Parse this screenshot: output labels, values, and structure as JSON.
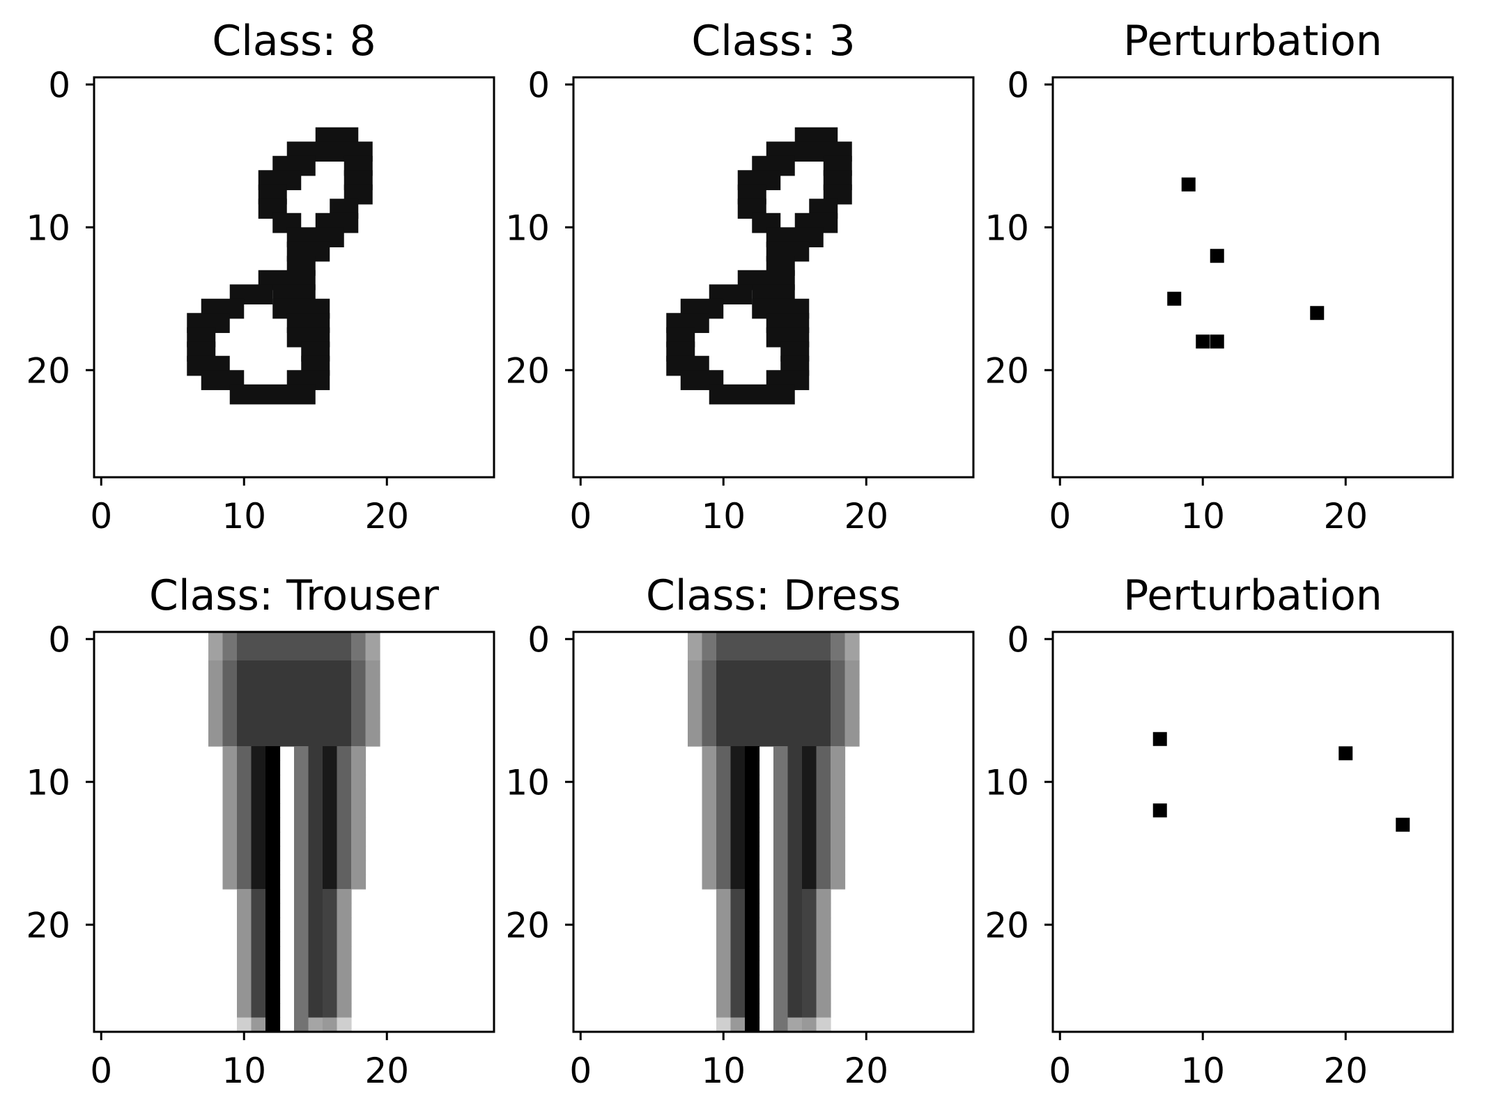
{
  "chart_data": [
    {
      "type": "heatmap",
      "title": "Class: 8",
      "xlim": [
        0,
        27
      ],
      "ylim": [
        27,
        0
      ],
      "xticks": [
        "0",
        "10",
        "20"
      ],
      "yticks": [
        "0",
        "10",
        "20"
      ],
      "colormap": "gray_r",
      "segments": [
        [
          4,
          16,
          18
        ],
        [
          5,
          14,
          19
        ],
        [
          6,
          13,
          15
        ],
        [
          6,
          18,
          19
        ],
        [
          7,
          12,
          14
        ],
        [
          7,
          18,
          19
        ],
        [
          8,
          12,
          13
        ],
        [
          8,
          18,
          19
        ],
        [
          9,
          12,
          13
        ],
        [
          9,
          17,
          18
        ],
        [
          10,
          13,
          14
        ],
        [
          10,
          16,
          18
        ],
        [
          11,
          14,
          17
        ],
        [
          12,
          14,
          16
        ],
        [
          13,
          14,
          15
        ],
        [
          14,
          12,
          15
        ],
        [
          15,
          10,
          12
        ],
        [
          15,
          13,
          15
        ],
        [
          16,
          8,
          10
        ],
        [
          16,
          13,
          16
        ],
        [
          17,
          7,
          9
        ],
        [
          17,
          14,
          16
        ],
        [
          18,
          7,
          8
        ],
        [
          18,
          14,
          16
        ],
        [
          19,
          7,
          8
        ],
        [
          19,
          15,
          16
        ],
        [
          20,
          7,
          9
        ],
        [
          20,
          15,
          16
        ],
        [
          21,
          8,
          10
        ],
        [
          21,
          14,
          16
        ],
        [
          22,
          10,
          15
        ]
      ]
    },
    {
      "type": "heatmap",
      "title": "Class: 3",
      "xlim": [
        0,
        27
      ],
      "ylim": [
        27,
        0
      ],
      "xticks": [
        "0",
        "10",
        "20"
      ],
      "yticks": [
        "0",
        "10",
        "20"
      ],
      "colormap": "gray_r",
      "segments": [
        [
          4,
          16,
          18
        ],
        [
          5,
          14,
          19
        ],
        [
          6,
          13,
          15
        ],
        [
          6,
          18,
          19
        ],
        [
          7,
          12,
          14
        ],
        [
          7,
          18,
          19
        ],
        [
          8,
          12,
          13
        ],
        [
          8,
          18,
          19
        ],
        [
          9,
          12,
          13
        ],
        [
          9,
          17,
          18
        ],
        [
          10,
          13,
          14
        ],
        [
          10,
          16,
          18
        ],
        [
          11,
          14,
          17
        ],
        [
          12,
          14,
          16
        ],
        [
          13,
          14,
          15
        ],
        [
          14,
          12,
          15
        ],
        [
          15,
          10,
          12
        ],
        [
          15,
          13,
          15
        ],
        [
          16,
          8,
          10
        ],
        [
          16,
          13,
          16
        ],
        [
          17,
          7,
          9
        ],
        [
          17,
          14,
          16
        ],
        [
          18,
          7,
          8
        ],
        [
          18,
          14,
          16
        ],
        [
          19,
          7,
          8
        ],
        [
          19,
          15,
          16
        ],
        [
          20,
          7,
          9
        ],
        [
          20,
          15,
          16
        ],
        [
          21,
          8,
          10
        ],
        [
          21,
          14,
          16
        ],
        [
          22,
          10,
          15
        ]
      ]
    },
    {
      "type": "heatmap",
      "title": "Perturbation",
      "xlim": [
        0,
        27
      ],
      "ylim": [
        27,
        0
      ],
      "xticks": [
        "0",
        "10",
        "20"
      ],
      "yticks": [
        "0",
        "10",
        "20"
      ],
      "colormap": "gray_r",
      "points": [
        [
          9,
          7
        ],
        [
          11,
          12
        ],
        [
          8,
          15
        ],
        [
          18,
          16
        ],
        [
          10,
          18
        ],
        [
          11,
          18
        ]
      ]
    },
    {
      "type": "heatmap",
      "title": "Class: Trouser",
      "xlim": [
        0,
        27
      ],
      "ylim": [
        27,
        0
      ],
      "xticks": [
        "0",
        "10",
        "20"
      ],
      "yticks": [
        "0",
        "10",
        "20"
      ],
      "colormap": "gray_r"
    },
    {
      "type": "heatmap",
      "title": "Class: Dress",
      "xlim": [
        0,
        27
      ],
      "ylim": [
        27,
        0
      ],
      "xticks": [
        "0",
        "10",
        "20"
      ],
      "yticks": [
        "0",
        "10",
        "20"
      ],
      "colormap": "gray_r"
    },
    {
      "type": "heatmap",
      "title": "Perturbation",
      "xlim": [
        0,
        27
      ],
      "ylim": [
        27,
        0
      ],
      "xticks": [
        "0",
        "10",
        "20"
      ],
      "yticks": [
        "0",
        "10",
        "20"
      ],
      "colormap": "gray_r",
      "points": [
        [
          7,
          7
        ],
        [
          20,
          8
        ],
        [
          7,
          12
        ],
        [
          24,
          13
        ]
      ]
    }
  ]
}
